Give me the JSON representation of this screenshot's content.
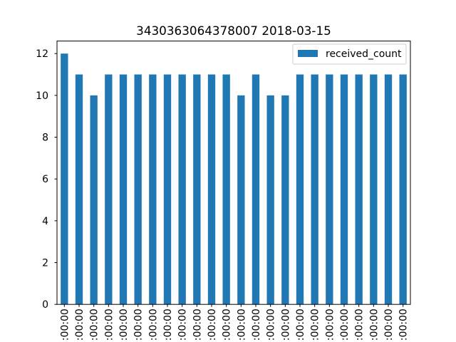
{
  "chart_data": {
    "type": "bar",
    "title": "3430363064378007 2018-03-15",
    "xlabel": "",
    "ylabel": "",
    "ylim": [
      0,
      12.6
    ],
    "yticks": [
      0,
      2,
      4,
      6,
      8,
      10,
      12
    ],
    "categories": [
      ":00:00",
      ":00:00",
      ":00:00",
      ":00:00",
      ":00:00",
      ":00:00",
      ":00:00",
      ":00:00",
      ":00:00",
      ":00:00",
      ":00:00",
      ":00:00",
      ":00:00",
      ":00:00",
      ":00:00",
      ":00:00",
      ":00:00",
      ":00:00",
      ":00:00",
      ":00:00",
      ":00:00",
      ":00:00",
      ":00:00",
      ":00:00"
    ],
    "series": [
      {
        "name": "received_count",
        "color": "#1f77b4",
        "values": [
          12,
          11,
          10,
          11,
          11,
          11,
          11,
          11,
          11,
          11,
          11,
          11,
          10,
          11,
          10,
          10,
          11,
          11,
          11,
          11,
          11,
          11,
          11,
          11
        ]
      }
    ],
    "legend_position": "top-right",
    "grid": false
  }
}
